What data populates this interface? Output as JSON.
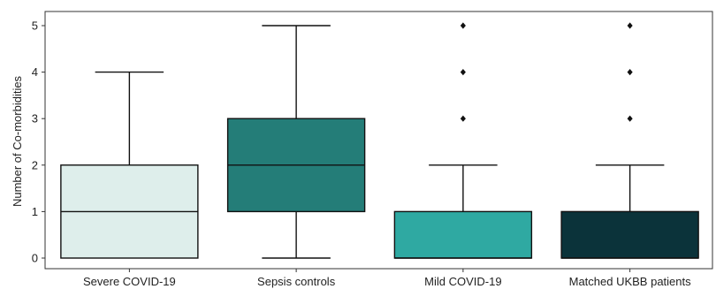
{
  "chart_data": {
    "type": "box",
    "title": "",
    "xlabel": "",
    "ylabel": "Number of Co-morbidities",
    "ylim": [
      -0.25,
      5.25
    ],
    "yticks": [
      0,
      1,
      2,
      3,
      4,
      5
    ],
    "grid": false,
    "legend": "none",
    "categories": [
      "Severe COVID-19",
      "Sepsis controls",
      "Mild COVID-19",
      "Matched UKBB patients"
    ],
    "boxes": [
      {
        "category": "Severe COVID-19",
        "min": 0,
        "q1": 0,
        "median": 1,
        "q3": 2,
        "max": 4,
        "outliers": [],
        "color": "#deeeeb"
      },
      {
        "category": "Sepsis controls",
        "min": 0,
        "q1": 1,
        "median": 2,
        "q3": 3,
        "max": 5,
        "outliers": [],
        "color": "#247d78"
      },
      {
        "category": "Mild COVID-19",
        "min": 0,
        "q1": 0,
        "median": 0,
        "q3": 1,
        "max": 2,
        "outliers": [
          3,
          4,
          5
        ],
        "color": "#2fa9a2"
      },
      {
        "category": "Matched UKBB patients",
        "min": 0,
        "q1": 0,
        "median": 0,
        "q3": 1,
        "max": 2,
        "outliers": [
          3,
          4,
          5
        ],
        "color": "#0b333a"
      }
    ]
  }
}
